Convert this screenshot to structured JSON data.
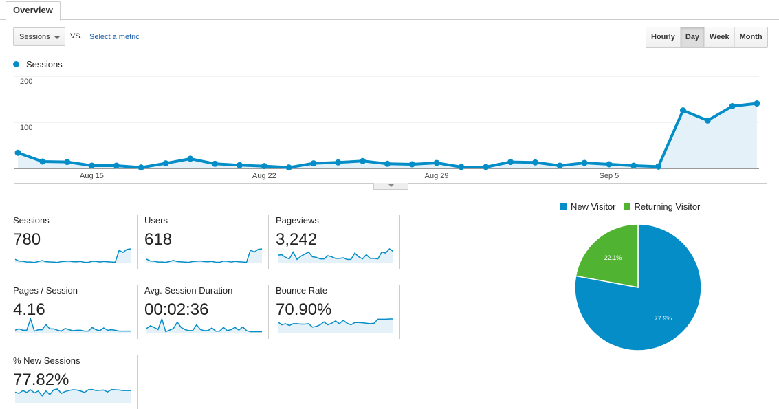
{
  "tabs": [
    {
      "label": "Overview"
    }
  ],
  "toolbar": {
    "metric": "Sessions",
    "vs": "VS.",
    "select_metric": "Select a metric",
    "granularity": [
      {
        "label": "Hourly"
      },
      {
        "label": "Day",
        "active": true
      },
      {
        "label": "Week"
      },
      {
        "label": "Month"
      }
    ]
  },
  "colors": {
    "sessions": "#058dc7",
    "fill": "#e5f1f9",
    "new_visitor": "#058dc7",
    "returning_visitor": "#50b432"
  },
  "chart_data": [
    {
      "type": "line",
      "series": [
        {
          "name": "Sessions",
          "values": [
            34,
            15,
            14,
            6,
            6,
            2,
            11,
            21,
            10,
            7,
            5,
            2,
            11,
            13,
            16,
            10,
            9,
            12,
            3,
            3,
            14,
            13,
            6,
            12,
            9,
            6,
            4,
            126,
            104,
            135,
            141
          ]
        }
      ],
      "x": [
        "Aug 12",
        "Aug 13",
        "Aug 14",
        "Aug 15",
        "Aug 16",
        "Aug 17",
        "Aug 18",
        "Aug 19",
        "Aug 20",
        "Aug 21",
        "Aug 22",
        "Aug 23",
        "Aug 24",
        "Aug 25",
        "Aug 26",
        "Aug 27",
        "Aug 28",
        "Aug 29",
        "Aug 30",
        "Aug 31",
        "Sep 1",
        "Sep 2",
        "Sep 3",
        "Sep 4",
        "Sep 5",
        "Sep 6",
        "Sep 7",
        "Sep 8",
        "Sep 9",
        "Sep 10",
        "Sep 11"
      ],
      "x_tick_labels": [
        "Aug 15",
        "Aug 22",
        "Aug 29",
        "Sep 5"
      ],
      "y_tick_labels": [
        "100",
        "200"
      ],
      "ylim": [
        0,
        200
      ],
      "grid": true,
      "legend": "top-left"
    },
    {
      "type": "pie",
      "categories": [
        "New Visitor",
        "Returning Visitor"
      ],
      "values": [
        77.9,
        22.1
      ],
      "labels": [
        "77.9%",
        "22.1%"
      ],
      "legend": "top"
    }
  ],
  "metrics": [
    {
      "label": "Sessions",
      "value": "780",
      "spark": [
        34,
        15,
        14,
        6,
        6,
        2,
        11,
        21,
        10,
        7,
        5,
        2,
        11,
        13,
        16,
        10,
        9,
        12,
        3,
        3,
        14,
        13,
        6,
        12,
        9,
        6,
        4,
        126,
        104,
        135,
        141
      ],
      "min": 0
    },
    {
      "label": "Users",
      "value": "618",
      "spark": [
        28,
        13,
        11,
        5,
        5,
        2,
        9,
        18,
        8,
        6,
        4,
        2,
        9,
        11,
        13,
        8,
        7,
        10,
        3,
        3,
        12,
        11,
        5,
        10,
        7,
        5,
        3,
        100,
        84,
        106,
        110
      ],
      "min": 0
    },
    {
      "label": "Pageviews",
      "value": "3,242",
      "spark": [
        90,
        95,
        70,
        55,
        120,
        50,
        80,
        100,
        120,
        75,
        70,
        55,
        55,
        85,
        75,
        60,
        60,
        65,
        50,
        50,
        110,
        75,
        55,
        95,
        60,
        60,
        55,
        120,
        110,
        150,
        125
      ],
      "min": 20
    },
    {
      "label": "Pages / Session",
      "value": "4.16",
      "spark": [
        3.6,
        4.2,
        3.6,
        3.6,
        8.5,
        3.2,
        3.8,
        3.8,
        6.0,
        4.2,
        4.2,
        3.6,
        3.2,
        4.4,
        3.8,
        3.4,
        3.6,
        3.6,
        3.2,
        3.2,
        4.8,
        3.8,
        3.4,
        4.6,
        3.6,
        3.8,
        3.6,
        3.2,
        3.2,
        3.2,
        3.2
      ],
      "min": 2.5
    },
    {
      "label": "Avg. Session Duration",
      "value": "00:02:36",
      "spark": [
        100,
        150,
        120,
        80,
        280,
        40,
        70,
        100,
        220,
        120,
        80,
        60,
        60,
        170,
        80,
        60,
        60,
        110,
        50,
        50,
        120,
        60,
        80,
        120,
        70,
        130,
        60,
        40,
        40,
        40,
        40
      ],
      "min": 20
    },
    {
      "label": "Bounce Rate",
      "value": "70.90%",
      "spark": [
        78,
        65,
        70,
        62,
        70,
        70,
        68,
        68,
        70,
        55,
        58,
        65,
        78,
        65,
        72,
        82,
        70,
        85,
        72,
        65,
        75,
        75,
        74,
        72,
        70,
        72,
        90,
        90,
        90,
        91,
        91
      ],
      "min": 30
    },
    {
      "label": "% New Sessions",
      "value": "77.82%",
      "spark": [
        75,
        70,
        82,
        74,
        85,
        72,
        80,
        60,
        80,
        65,
        85,
        88,
        70,
        78,
        82,
        85,
        84,
        80,
        74,
        85,
        86,
        82,
        83,
        84,
        76,
        86,
        85,
        84,
        82,
        82,
        82
      ],
      "min": 30
    }
  ]
}
